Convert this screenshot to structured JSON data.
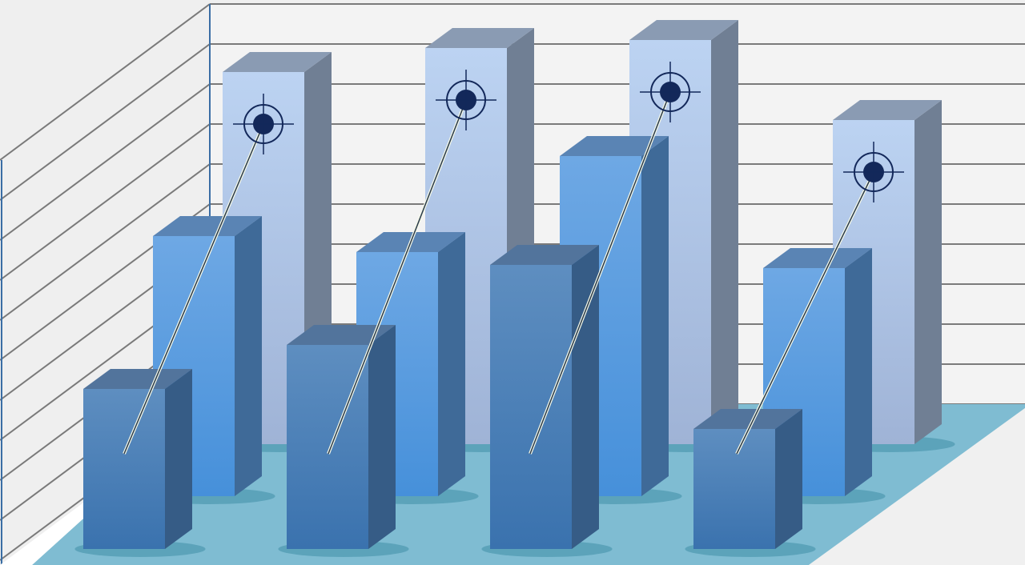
{
  "chart_data": {
    "type": "bar",
    "style": "3d-clustered",
    "title": "",
    "xlabel": "",
    "ylabel": "",
    "grid": true,
    "categories": [
      "",
      "",
      "",
      ""
    ],
    "ylim": [
      0,
      10
    ],
    "series": [
      {
        "row": "back",
        "values": [
          9.3,
          9.9,
          10.1,
          8.1
        ],
        "color": "#b7cdee",
        "marker": "target-icon"
      },
      {
        "row": "middle",
        "values": [
          6.5,
          6.1,
          8.5,
          5.7
        ],
        "color": "#5a9de0"
      },
      {
        "row": "front",
        "values": [
          4.0,
          5.1,
          7.1,
          3.0
        ],
        "color": "#4c80b8"
      }
    ],
    "colors": {
      "background": "#efefef",
      "floor": "#7fbcd2",
      "grid": "#7a7a7a",
      "axis": "#3a6ea5",
      "target": "#13285a"
    }
  }
}
